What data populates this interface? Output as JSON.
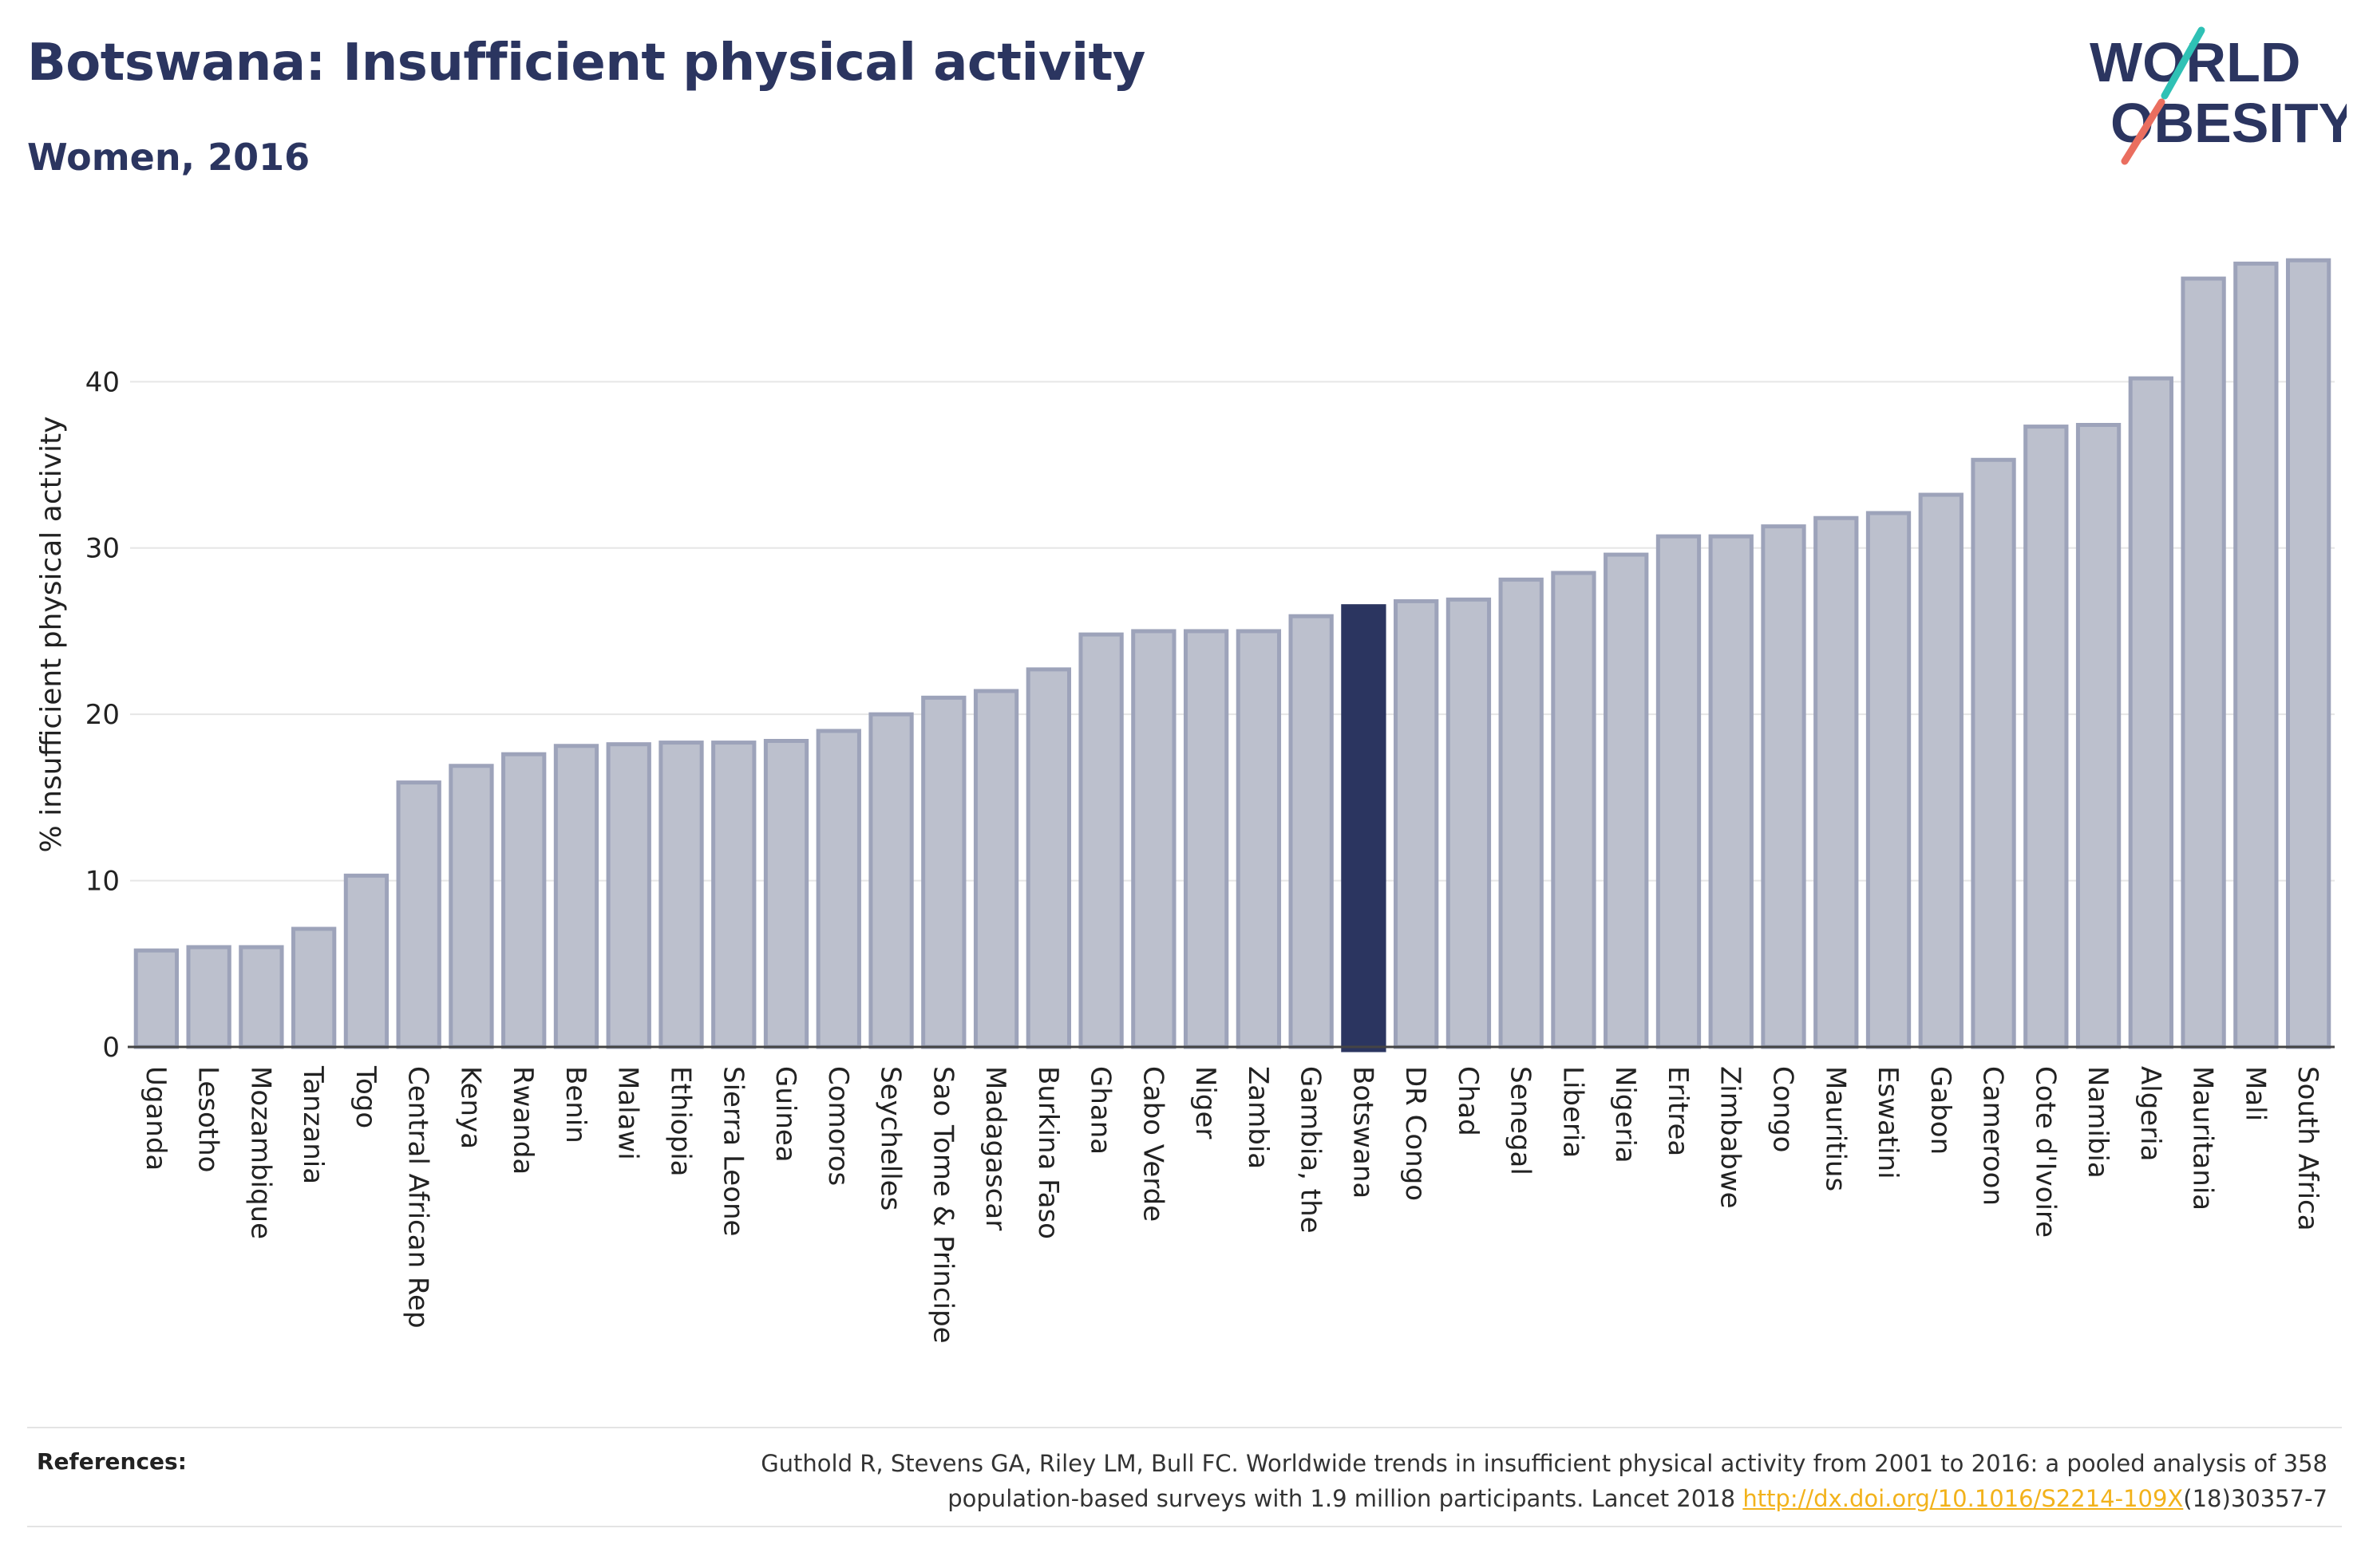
{
  "header": {
    "title": "Botswana: Insufficient physical activity",
    "subtitle": "Women, 2016"
  },
  "logo": {
    "line1": "WORLD",
    "line2": "OBESITY"
  },
  "colors": {
    "bar_fill": "#bcc0cd",
    "bar_stroke": "#9da3ba",
    "highlight": "#2b3560",
    "title": "#2b3560",
    "logo_teal": "#2fc1b5",
    "logo_coral": "#ea6e5f",
    "link": "#f2b21b"
  },
  "chart_data": {
    "type": "bar",
    "title": "Botswana: Insufficient physical activity",
    "subtitle": "Women, 2016",
    "xlabel": "",
    "ylabel": "% insufficient physical activity",
    "ylim": [
      0,
      47.5
    ],
    "yticks": [
      0,
      10,
      20,
      30,
      40
    ],
    "grid": true,
    "highlight": "Botswana",
    "categories": [
      "Uganda",
      "Lesotho",
      "Mozambique",
      "Tanzania",
      "Togo",
      "Central African Rep",
      "Kenya",
      "Rwanda",
      "Benin",
      "Malawi",
      "Ethiopia",
      "Sierra Leone",
      "Guinea",
      "Comoros",
      "Seychelles",
      "Sao Tome & Principe",
      "Madagascar",
      "Burkina Faso",
      "Ghana",
      "Cabo Verde",
      "Niger",
      "Zambia",
      "Gambia, the",
      "Botswana",
      "DR Congo",
      "Chad",
      "Senegal",
      "Liberia",
      "Nigeria",
      "Eritrea",
      "Zimbabwe",
      "Congo",
      "Mauritius",
      "Eswatini",
      "Gabon",
      "Cameroon",
      "Cote d'Ivoire",
      "Namibia",
      "Algeria",
      "Mauritania",
      "Mali",
      "South Africa"
    ],
    "values": [
      5.8,
      6.0,
      6.0,
      7.1,
      10.3,
      15.9,
      16.9,
      17.6,
      18.1,
      18.2,
      18.3,
      18.3,
      18.4,
      19.0,
      20.0,
      21.0,
      21.4,
      22.7,
      24.8,
      25.0,
      25.0,
      25.0,
      25.9,
      26.5,
      26.8,
      26.9,
      28.1,
      28.5,
      29.6,
      30.7,
      30.7,
      31.3,
      31.8,
      32.1,
      33.2,
      35.3,
      37.3,
      37.4,
      40.2,
      46.2,
      47.1,
      47.3
    ]
  },
  "references": {
    "label": "References:",
    "line1": "Guthold R, Stevens GA, Riley LM, Bull FC. Worldwide trends in insufficient physical activity from 2001 to 2016: a pooled analysis of 358",
    "line2_before": "population-based surveys with 1.9 million participants. Lancet 2018 ",
    "link": "http://dx.doi.org/10.1016/S2214-109X",
    "line2_after": "(18)30357-7"
  }
}
